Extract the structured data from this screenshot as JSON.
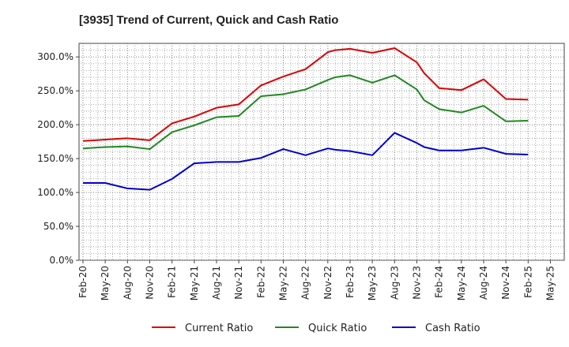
{
  "chart_data": {
    "type": "line",
    "title": "[3935]  Trend of Current, Quick and Cash Ratio",
    "xlabel": "",
    "ylabel": "",
    "ylim": [
      0,
      320
    ],
    "yticks": [
      0,
      50,
      100,
      150,
      200,
      250,
      300
    ],
    "ytick_labels": [
      "0.0%",
      "50.0%",
      "100.0%",
      "150.0%",
      "200.0%",
      "250.0%",
      "300.0%"
    ],
    "xtick_labels": [
      "Feb-20",
      "May-20",
      "Aug-20",
      "Nov-20",
      "Feb-21",
      "May-21",
      "Aug-21",
      "Nov-21",
      "Feb-22",
      "May-22",
      "Aug-22",
      "Nov-22",
      "Feb-23",
      "May-23",
      "Aug-23",
      "Nov-23",
      "Feb-24",
      "May-24",
      "Aug-24",
      "Nov-24",
      "Feb-25",
      "May-25"
    ],
    "grid": true,
    "legend_position": "bottom",
    "x": [
      "Feb-20",
      "May-20",
      "Aug-20",
      "Nov-20",
      "Feb-21",
      "May-21",
      "Aug-21",
      "Nov-21",
      "Feb-22",
      "May-22",
      "Aug-22",
      "Nov-22",
      "Dec-22",
      "Feb-23",
      "May-23",
      "Aug-23",
      "Nov-23",
      "Dec-23",
      "Feb-24",
      "May-24",
      "Aug-24",
      "Nov-24",
      "Feb-25"
    ],
    "x_index": [
      0,
      1,
      2,
      3,
      4,
      5,
      6,
      7,
      8,
      9,
      10,
      11,
      11.33,
      12,
      13,
      14,
      15,
      15.33,
      16,
      17,
      18,
      19,
      20
    ],
    "series": [
      {
        "name": "Current Ratio",
        "color": "#dd0000",
        "values": [
          176,
          178,
          180,
          177,
          202,
          212,
          225,
          230,
          258,
          271,
          282,
          307,
          310,
          312,
          306,
          313,
          292,
          276,
          254,
          251,
          267,
          238,
          237
        ]
      },
      {
        "name": "Quick Ratio",
        "color": "#228822",
        "values": [
          165,
          167,
          168,
          164,
          189,
          199,
          211,
          213,
          242,
          245,
          252,
          266,
          270,
          273,
          262,
          273,
          252,
          236,
          223,
          218,
          228,
          205,
          206
        ]
      },
      {
        "name": "Cash Ratio",
        "color": "#0000cc",
        "values": [
          114,
          114,
          106,
          104,
          120,
          143,
          145,
          145,
          151,
          164,
          155,
          165,
          163,
          161,
          155,
          188,
          173,
          167,
          162,
          162,
          166,
          157,
          156
        ]
      }
    ]
  }
}
